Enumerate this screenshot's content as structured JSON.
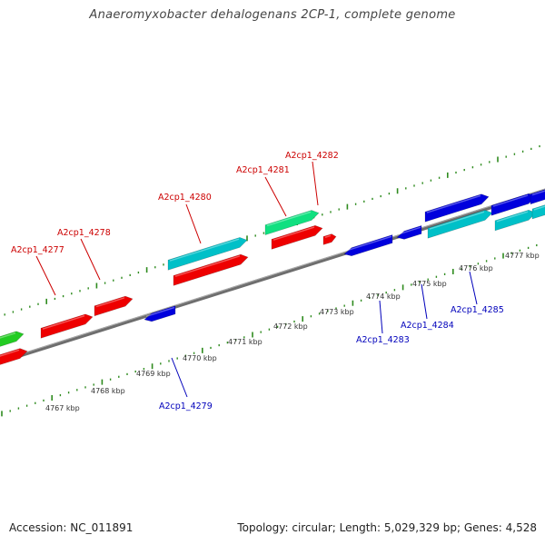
{
  "title": "Anaeromyxobacter dehalogenans 2CP-1, complete genome",
  "footer": {
    "accession": "Accession: NC_011891",
    "summary": "Topology: circular; Length: 5,029,329 bp; Genes: 4,528"
  },
  "colors": {
    "backbone": "#7a7a7a",
    "tick": "#2e8b1e",
    "red": "#ee0000",
    "cyan": "#00c0c8",
    "teal": "#10e080",
    "green": "#22cc22",
    "blue": "#0000dd",
    "label_top": "#cc0000",
    "label_bottom": "#0000bb"
  },
  "scale_labels": [
    "4767 kbp",
    "4768 kbp",
    "4769 kbp",
    "4770 kbp",
    "4771 kbp",
    "4772 kbp",
    "4773 kbp",
    "4774 kbp",
    "4775 kbp",
    "4776 kbp",
    "4777 kbp"
  ],
  "gene_labels_top": [
    "A2cp1_4277",
    "A2cp1_4278",
    "A2cp1_4280",
    "A2cp1_4281",
    "A2cp1_4282"
  ],
  "gene_labels_bottom": [
    "A2cp1_4279",
    "A2cp1_4283",
    "A2cp1_4284",
    "A2cp1_4285"
  ]
}
